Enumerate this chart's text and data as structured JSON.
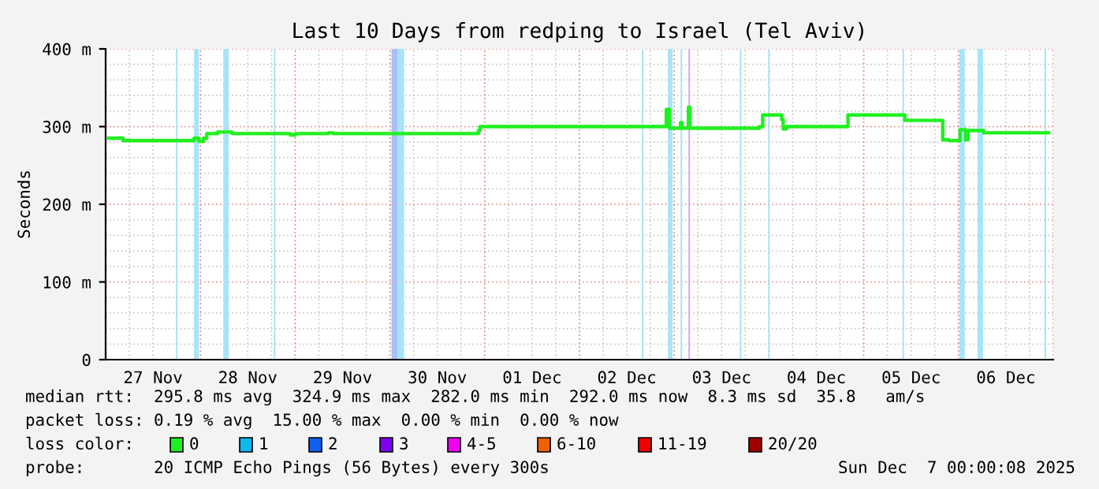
{
  "chart_data": {
    "type": "step",
    "title": "Last 10 Days from redping to Israel (Tel Aviv)",
    "ylabel": "Seconds",
    "xlim": [
      "2025-11-27T00:00",
      "2025-12-07T00:00"
    ],
    "xticks": [
      {
        "value": "2025-11-27T12:00",
        "label": "27 Nov"
      },
      {
        "value": "2025-11-28T12:00",
        "label": "28 Nov"
      },
      {
        "value": "2025-11-29T12:00",
        "label": "29 Nov"
      },
      {
        "value": "2025-11-30T12:00",
        "label": "30 Nov"
      },
      {
        "value": "2025-12-01T12:00",
        "label": "01 Dec"
      },
      {
        "value": "2025-12-02T12:00",
        "label": "02 Dec"
      },
      {
        "value": "2025-12-03T12:00",
        "label": "03 Dec"
      },
      {
        "value": "2025-12-04T12:00",
        "label": "04 Dec"
      },
      {
        "value": "2025-12-05T12:00",
        "label": "05 Dec"
      },
      {
        "value": "2025-12-06T12:00",
        "label": "06 Dec"
      }
    ],
    "ylim": [
      0,
      400
    ],
    "yticks": [
      0,
      {
        "value": 100,
        "label": "100 m"
      },
      {
        "value": 200,
        "label": "200 m"
      },
      {
        "value": 300,
        "label": "300 m"
      },
      {
        "value": 400,
        "label": "400 m"
      }
    ],
    "grid": true,
    "series": [
      {
        "color": "#20f020",
        "x": [
          "2025-11-27T00:48",
          "2025-11-27T04:24",
          "2025-11-27T22:00",
          "2025-11-27T22:24",
          "2025-11-27T23:36",
          "2025-11-28T00:48",
          "2025-11-28T01:36",
          "2025-11-28T04:24",
          "2025-11-28T08:00",
          "2025-11-28T22:00",
          "2025-11-28T22:48",
          "2025-11-29T00:00",
          "2025-11-29T08:24",
          "2025-11-29T09:36",
          "2025-11-30T22:00",
          "2025-11-30T22:24",
          "2025-11-30T22:48",
          "2025-12-02T14:00",
          "2025-12-02T21:36",
          "2025-12-02T22:00",
          "2025-12-02T22:48",
          "2025-12-03T01:12",
          "2025-12-03T01:36",
          "2025-12-03T02:00",
          "2025-12-03T03:24",
          "2025-12-03T03:36",
          "2025-12-03T04:00",
          "2025-12-03T21:12",
          "2025-12-03T21:36",
          "2025-12-03T22:24",
          "2025-12-04T02:48",
          "2025-12-04T03:12",
          "2025-12-04T03:36",
          "2025-12-04T04:24",
          "2025-12-04T19:12",
          "2025-12-04T20:00",
          "2025-12-05T10:00",
          "2025-12-05T10:24",
          "2025-12-05T19:12",
          "2025-12-05T20:00",
          "2025-12-05T21:36",
          "2025-12-06T00:00",
          "2025-12-06T00:24",
          "2025-12-06T01:36",
          "2025-12-06T01:48",
          "2025-12-06T02:24",
          "2025-12-06T06:00",
          "2025-12-06T06:24",
          "2025-12-06T22:48"
        ],
        "values": [
          285,
          282,
          282,
          285,
          281,
          285,
          291,
          293,
          291,
          291,
          289,
          291,
          292,
          291,
          291,
          295,
          300,
          300,
          300,
          322,
          298,
          298,
          305,
          298,
          298,
          325,
          298,
          298,
          300,
          315,
          315,
          309,
          297,
          300,
          300,
          315,
          315,
          308,
          308,
          283,
          282,
          282,
          296,
          296,
          283,
          295,
          295,
          292,
          292
        ]
      }
    ],
    "bands": [
      {
        "axis": "x",
        "from": "2025-11-27T17:48",
        "to": "2025-11-27T18:12",
        "color": "#a8e4f8"
      },
      {
        "axis": "x",
        "from": "2025-11-27T22:24",
        "to": "2025-11-27T23:36",
        "color": "#a8e4f8"
      },
      {
        "axis": "x",
        "from": "2025-11-28T05:48",
        "to": "2025-11-28T07:12",
        "color": "#a8e4f8"
      },
      {
        "axis": "x",
        "from": "2025-11-28T18:36",
        "to": "2025-11-28T19:00",
        "color": "#a8e4f8"
      },
      {
        "axis": "x",
        "from": "2025-11-30T00:24",
        "to": "2025-11-30T02:00",
        "color": "#a8c0f8"
      },
      {
        "axis": "x",
        "from": "2025-11-30T02:00",
        "to": "2025-11-30T03:36",
        "color": "#a8e4f8"
      },
      {
        "axis": "x",
        "from": "2025-12-02T15:48",
        "to": "2025-12-02T16:12",
        "color": "#a8e4f8"
      },
      {
        "axis": "x",
        "from": "2025-12-02T22:24",
        "to": "2025-12-02T23:36",
        "color": "#a8e4f8"
      },
      {
        "axis": "x",
        "from": "2025-12-03T01:36",
        "to": "2025-12-03T02:00",
        "color": "#a8e4f8"
      },
      {
        "axis": "x",
        "from": "2025-12-03T03:36",
        "to": "2025-12-03T04:00",
        "color": "#d0a8f8"
      },
      {
        "axis": "x",
        "from": "2025-12-03T16:36",
        "to": "2025-12-03T17:00",
        "color": "#a8e4f8"
      },
      {
        "axis": "x",
        "from": "2025-12-03T23:48",
        "to": "2025-12-04T00:12",
        "color": "#a8e4f8"
      },
      {
        "axis": "x",
        "from": "2025-12-05T09:48",
        "to": "2025-12-05T10:12",
        "color": "#a8e4f8"
      },
      {
        "axis": "x",
        "from": "2025-12-06T00:12",
        "to": "2025-12-06T01:36",
        "color": "#a8e4f8"
      },
      {
        "axis": "x",
        "from": "2025-12-06T04:48",
        "to": "2025-12-06T06:12",
        "color": "#a8e4f8"
      },
      {
        "axis": "x",
        "from": "2025-12-06T21:48",
        "to": "2025-12-06T22:12",
        "color": "#a8e4f8"
      }
    ],
    "annotations": [
      "median rtt:  295.8 ms avg  324.9 ms max  282.0 ms min  292.0 ms now  8.3 ms sd  35.8   am/s",
      "packet loss: 0.19 % avg  15.00 % max  0.00 % min  0.00 % now",
      "loss color:",
      "0",
      "1",
      "2",
      "3",
      "4-5",
      "6-10",
      "11-19",
      "20/20",
      "probe:       20 ICMP Echo Pings (56 Bytes) every 300s",
      "Sun Dec  7 00:00:08 2025"
    ]
  }
}
